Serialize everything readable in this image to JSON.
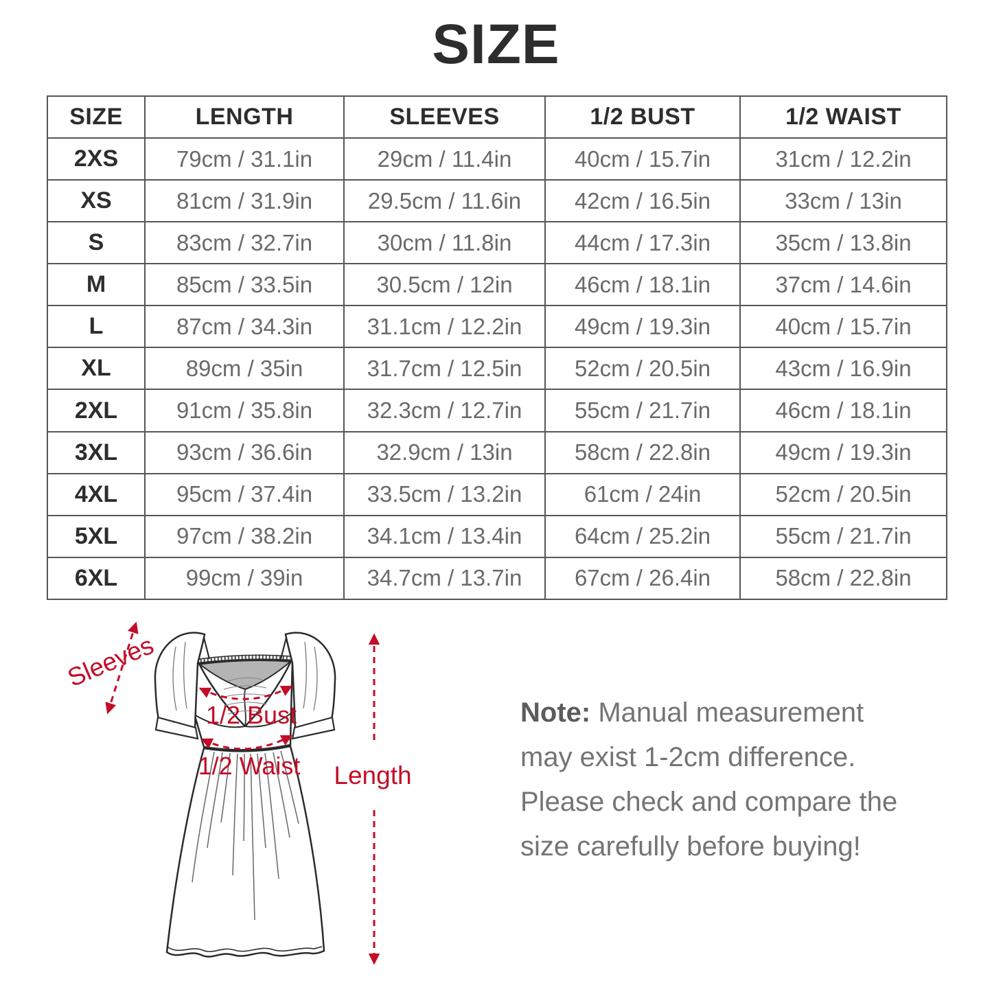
{
  "title": "SIZE",
  "colors": {
    "annotation_red": "#c30d28",
    "table_border": "#565656",
    "header_text": "#2d2d2d",
    "value_text": "#6a6a6a",
    "note_text": "#747474",
    "inset_gray": "#b4b4b4"
  },
  "table": {
    "headers": [
      "SIZE",
      "LENGTH",
      "SLEEVES",
      "1/2 BUST",
      "1/2 WAIST"
    ],
    "rows": [
      {
        "size": "2XS",
        "length": "79cm / 31.1in",
        "sleeves": "29cm / 11.4in",
        "bust": "40cm / 15.7in",
        "waist": "31cm / 12.2in"
      },
      {
        "size": "XS",
        "length": "81cm / 31.9in",
        "sleeves": "29.5cm / 11.6in",
        "bust": "42cm / 16.5in",
        "waist": "33cm / 13in"
      },
      {
        "size": "S",
        "length": "83cm / 32.7in",
        "sleeves": "30cm / 11.8in",
        "bust": "44cm / 17.3in",
        "waist": "35cm / 13.8in"
      },
      {
        "size": "M",
        "length": "85cm / 33.5in",
        "sleeves": "30.5cm / 12in",
        "bust": "46cm / 18.1in",
        "waist": "37cm / 14.6in"
      },
      {
        "size": "L",
        "length": "87cm / 34.3in",
        "sleeves": "31.1cm / 12.2in",
        "bust": "49cm / 19.3in",
        "waist": "40cm / 15.7in"
      },
      {
        "size": "XL",
        "length": "89cm / 35in",
        "sleeves": "31.7cm / 12.5in",
        "bust": "52cm / 20.5in",
        "waist": "43cm / 16.9in"
      },
      {
        "size": "2XL",
        "length": "91cm / 35.8in",
        "sleeves": "32.3cm / 12.7in",
        "bust": "55cm / 21.7in",
        "waist": "46cm / 18.1in"
      },
      {
        "size": "3XL",
        "length": "93cm / 36.6in",
        "sleeves": "32.9cm / 13in",
        "bust": "58cm / 22.8in",
        "waist": "49cm / 19.3in"
      },
      {
        "size": "4XL",
        "length": "95cm / 37.4in",
        "sleeves": "33.5cm / 13.2in",
        "bust": "61cm / 24in",
        "waist": "52cm / 20.5in"
      },
      {
        "size": "5XL",
        "length": "97cm / 38.2in",
        "sleeves": "34.1cm / 13.4in",
        "bust": "64cm / 25.2in",
        "waist": "55cm / 21.7in"
      },
      {
        "size": "6XL",
        "length": "99cm / 39in",
        "sleeves": "34.7cm / 13.7in",
        "bust": "67cm / 26.4in",
        "waist": "58cm / 22.8in"
      }
    ]
  },
  "diagram": {
    "labels": {
      "sleeves": "Sleeves",
      "bust": "1/2 Bust",
      "waist": "1/2 Waist",
      "length": "Length"
    }
  },
  "note": {
    "label": "Note:",
    "text": " Manual measurement may exist 1-2cm difference. Please check and compare the size carefully before buying!"
  }
}
